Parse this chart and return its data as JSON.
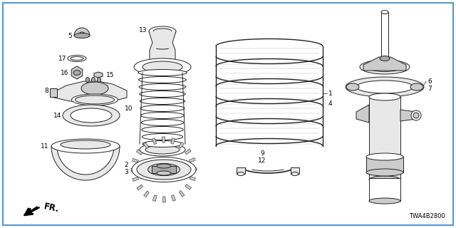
{
  "background_color": "#ffffff",
  "border_color": "#5599cc",
  "diagram_code": "TWA4B2800",
  "line_color": "#222222",
  "fill_light": "#e8e8e8",
  "fill_mid": "#cccccc",
  "fill_dark": "#aaaaaa"
}
